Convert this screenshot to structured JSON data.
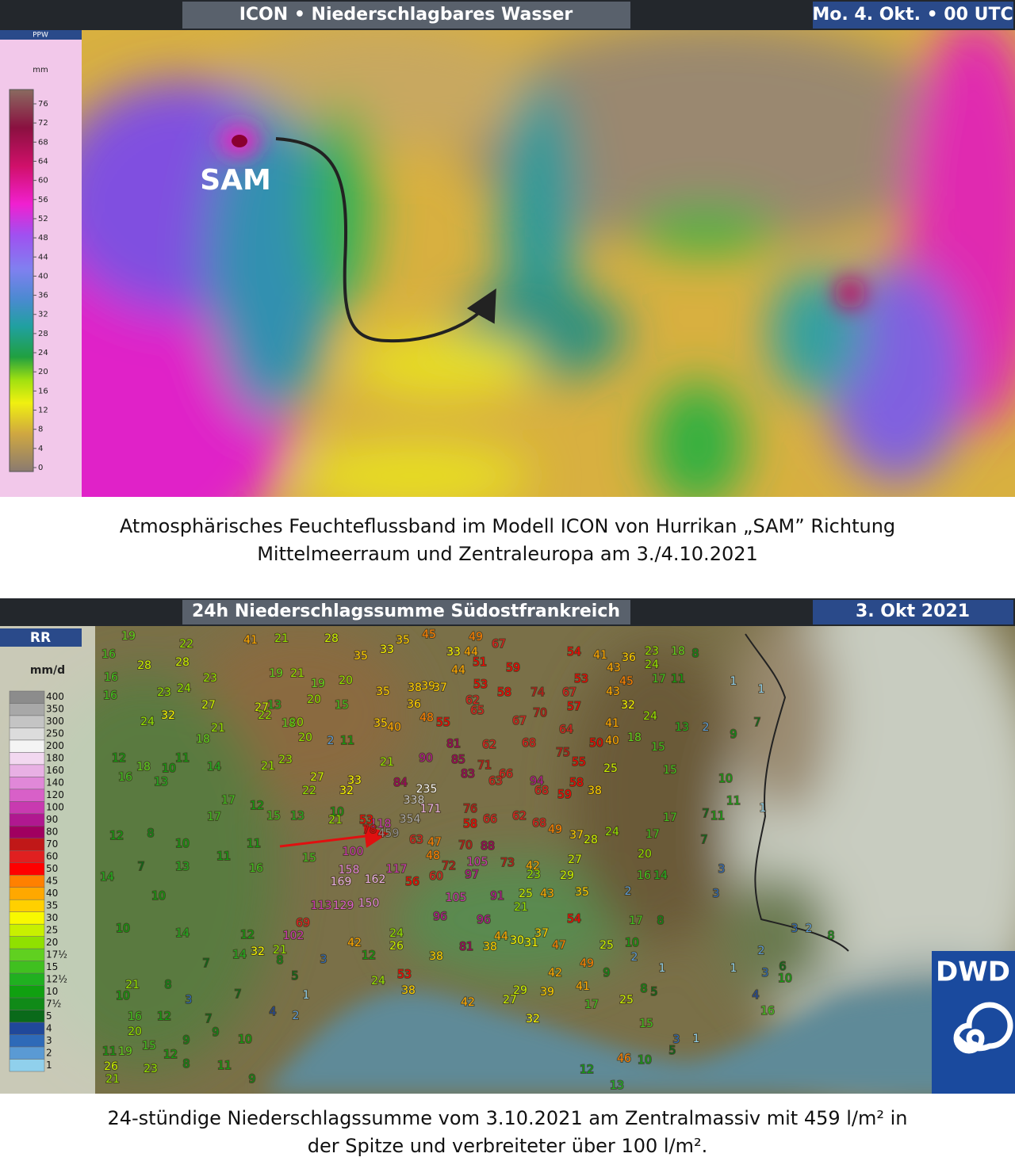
{
  "map1": {
    "title": "ICON • Niederschlagbares Wasser",
    "date": "Mo. 4. Okt. • 00 UTC",
    "label": "SAM",
    "legend": {
      "title": "PPW",
      "unit": "mm",
      "ticks": [
        76,
        72,
        68,
        64,
        60,
        56,
        52,
        48,
        44,
        40,
        36,
        32,
        28,
        24,
        20,
        16,
        12,
        8,
        4,
        0
      ]
    }
  },
  "caption1": [
    "Atmosphärisches Feuchteflussband im Modell ICON von Hurrikan „SAM” Richtung",
    "Mittelmeerraum und Zentraleuropa am 3./4.10.2021"
  ],
  "map2": {
    "title": "24h Niederschlagssumme Südostfrankreich",
    "date": "3. Okt 2021",
    "logo": "DWD",
    "legend": {
      "title": "RR",
      "unit": "mm/d",
      "ticks": [
        400,
        350,
        300,
        250,
        200,
        180,
        160,
        140,
        120,
        100,
        90,
        80,
        70,
        60,
        50,
        45,
        40,
        35,
        30,
        25,
        20,
        {
          "value": 17.5,
          "label": "17½"
        },
        15,
        {
          "value": 12.5,
          "label": "12½"
        },
        10,
        {
          "value": 7.5,
          "label": "7½"
        },
        5,
        4,
        3,
        2,
        1
      ]
    },
    "stations": [
      459,
      354,
      235,
      338,
      171,
      118,
      100,
      162,
      169,
      158,
      150,
      129,
      113,
      102,
      105,
      97,
      91,
      96,
      96,
      117,
      105,
      88,
      90,
      85,
      84,
      81,
      83,
      94,
      68,
      73,
      62,
      68,
      56,
      60,
      72,
      63,
      47,
      48,
      76,
      66,
      58,
      70,
      53,
      78,
      69,
      54,
      53,
      38,
      42,
      81,
      38,
      44,
      30,
      31,
      37,
      47,
      25,
      10,
      54,
      53,
      67,
      57,
      64,
      50,
      40,
      75,
      55,
      58,
      59,
      38,
      25,
      28,
      37,
      49,
      24,
      17,
      20,
      16,
      14,
      15,
      15,
      13,
      2,
      9,
      7,
      1,
      1,
      18,
      8,
      17,
      11,
      24,
      23,
      36,
      43,
      45,
      41,
      43,
      32,
      24,
      41,
      18,
      59,
      51,
      53,
      62,
      65,
      58,
      74,
      70,
      67,
      62,
      68,
      71,
      66,
      63,
      55,
      48,
      40,
      35,
      36,
      38,
      39,
      37,
      44,
      33,
      44,
      35,
      33,
      35,
      45,
      49,
      67,
      35,
      21,
      33,
      32,
      27,
      22,
      23,
      21,
      20,
      2,
      11,
      20,
      19,
      15,
      20,
      20,
      18,
      21,
      19,
      28,
      21,
      41,
      27,
      22,
      13,
      12,
      15,
      13,
      10,
      21,
      11,
      11,
      16,
      15,
      22,
      28,
      28,
      23,
      24,
      23,
      32,
      24,
      27,
      21,
      18,
      11,
      10,
      14,
      18,
      16,
      13,
      12,
      17,
      17,
      8,
      12,
      10,
      7,
      13,
      14,
      10,
      10,
      14,
      16,
      19,
      16,
      16,
      24,
      24,
      26,
      12,
      42,
      38,
      29,
      27,
      32,
      39,
      42,
      41,
      49,
      9,
      17,
      25,
      15,
      8,
      5,
      12,
      46,
      10,
      13,
      5,
      3,
      1,
      17,
      8,
      2,
      1,
      2,
      3,
      6,
      10,
      1,
      4,
      16,
      3,
      2,
      8,
      7,
      3,
      3,
      11,
      11,
      10,
      1,
      17,
      2,
      7,
      32,
      21,
      8,
      14,
      12,
      5,
      3,
      1,
      2,
      4,
      7,
      8,
      21,
      10,
      3,
      7,
      7,
      16,
      12,
      20,
      9,
      10,
      9,
      12,
      15,
      11,
      19,
      26,
      21,
      23,
      8,
      11,
      9,
      35,
      29,
      27,
      42,
      23,
      25,
      43,
      21
    ]
  },
  "caption2": [
    "24-stündige Niederschlagssumme vom 3.10.2021 am Zentralmassiv mit 459 l/m² in",
    "der Spitze und verbreiteter über 100 l/m²."
  ]
}
